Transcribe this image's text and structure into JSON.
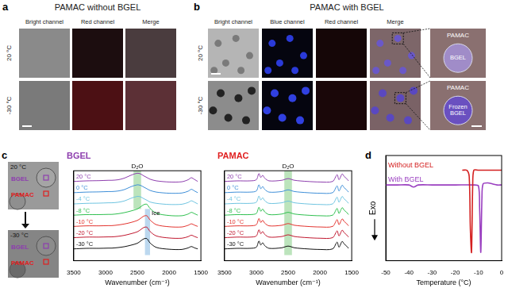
{
  "panel_labels": [
    "a",
    "b",
    "c",
    "d"
  ],
  "panels": {
    "a": {
      "title": "PAMAC without BGEL",
      "columns": [
        "Bright channel",
        "Red channel",
        "Merge"
      ],
      "rows": [
        "20 °C",
        "-30 °C"
      ]
    },
    "b": {
      "title": "PAMAC with BGEL",
      "columns": [
        "Bright channel",
        "Blue channel",
        "Red channel",
        "Merge"
      ],
      "rows": [
        "20 °C",
        "-30 °C"
      ],
      "zoom": [
        {
          "outer": "PAMAC",
          "inner": "BGEL"
        },
        {
          "outer": "PAMAC",
          "inner": "Frozen BGEL"
        }
      ]
    },
    "c": {
      "images": [
        "20 °C",
        "-30 °C"
      ],
      "markers": [
        {
          "label": "BGEL",
          "color": "#8e3fae"
        },
        {
          "label": "PAMAC",
          "color": "#e02020"
        }
      ]
    }
  },
  "chart_data": [
    {
      "type": "line",
      "title": "BGEL",
      "color": "#8e3fae",
      "xlabel": "Wavenumber (cm⁻¹)",
      "xlim": [
        3500,
        1500
      ],
      "xticks": [
        3500,
        3000,
        2500,
        2000,
        1500
      ],
      "ylim": [
        0,
        8
      ],
      "tick_labels": "x",
      "x": [
        3500,
        3300,
        3100,
        2950,
        2900,
        2800,
        2700,
        2600,
        2500,
        2450,
        2400,
        2350,
        2300,
        2200,
        2000,
        1800,
        1700,
        1650,
        1600,
        1550
      ],
      "series": [
        {
          "name": "20 °C",
          "color": "#8e3fae",
          "values": [
            7.05,
            7.1,
            7.12,
            7.15,
            7.15,
            7.2,
            7.35,
            7.6,
            7.78,
            7.72,
            7.55,
            7.4,
            7.25,
            7.1,
            7.0,
            7.02,
            7.2,
            7.38,
            7.22,
            7.05
          ]
        },
        {
          "name": "0 °C",
          "color": "#3f8fd8",
          "values": [
            6.05,
            6.1,
            6.12,
            6.15,
            6.15,
            6.2,
            6.33,
            6.58,
            6.75,
            6.7,
            6.55,
            6.4,
            6.25,
            6.1,
            6.0,
            6.02,
            6.18,
            6.35,
            6.2,
            6.05
          ]
        },
        {
          "name": "-4 °C",
          "color": "#6fc4e0",
          "values": [
            5.05,
            5.1,
            5.12,
            5.15,
            5.15,
            5.2,
            5.32,
            5.55,
            5.72,
            5.68,
            5.52,
            5.38,
            5.22,
            5.1,
            5.0,
            5.02,
            5.18,
            5.33,
            5.2,
            5.05
          ]
        },
        {
          "name": "-8 °C",
          "color": "#2fbf4f",
          "values": [
            4.05,
            4.1,
            4.1,
            4.12,
            4.12,
            4.18,
            4.28,
            4.42,
            4.6,
            4.78,
            4.98,
            5.02,
            4.65,
            4.22,
            4.02,
            4.0,
            4.15,
            4.3,
            4.18,
            4.05
          ]
        },
        {
          "name": "-10 °C",
          "color": "#e3342f",
          "values": [
            3.05,
            3.1,
            3.1,
            3.12,
            3.12,
            3.18,
            3.27,
            3.4,
            3.58,
            3.76,
            3.96,
            4.0,
            3.62,
            3.2,
            3.02,
            3.0,
            3.15,
            3.28,
            3.16,
            3.05
          ]
        },
        {
          "name": "-20 °C",
          "color": "#c0182f",
          "values": [
            2.05,
            2.1,
            2.1,
            2.12,
            2.12,
            2.17,
            2.26,
            2.4,
            2.57,
            2.75,
            2.95,
            2.98,
            2.6,
            2.2,
            2.02,
            2.0,
            2.14,
            2.27,
            2.15,
            2.05
          ]
        },
        {
          "name": "-30 °C",
          "color": "#111111",
          "values": [
            1.05,
            1.1,
            1.1,
            1.12,
            1.12,
            1.17,
            1.25,
            1.38,
            1.55,
            1.74,
            1.94,
            1.97,
            1.58,
            1.18,
            1.02,
            1.0,
            1.14,
            1.26,
            1.14,
            1.05
          ]
        }
      ],
      "annotations": [
        {
          "label": "D₂O",
          "x": [
            2560,
            2440
          ],
          "y": [
            4.6,
            8
          ],
          "color": "#9fd9a0"
        },
        {
          "label": "Ice",
          "x": [
            2380,
            2300
          ],
          "y": [
            0.5,
            4.6
          ],
          "color": "#9fc8e8"
        }
      ]
    },
    {
      "type": "line",
      "title": "PAMAC",
      "color": "#e02020",
      "xlabel": "Wavenumber (cm⁻¹)",
      "xlim": [
        3500,
        1500
      ],
      "xticks": [
        3500,
        3000,
        2500,
        2000,
        1500
      ],
      "ylim": [
        0,
        8
      ],
      "tick_labels": "x",
      "x": [
        3500,
        3300,
        3100,
        3000,
        2960,
        2930,
        2900,
        2870,
        2800,
        2600,
        2500,
        2400,
        2200,
        2000,
        1800,
        1730,
        1700,
        1650,
        1620,
        1580,
        1550
      ],
      "series": [
        {
          "name": "20 °C",
          "color": "#8e3fae",
          "values": [
            7.05,
            7.1,
            7.1,
            7.2,
            7.75,
            7.4,
            7.6,
            7.35,
            7.1,
            7.15,
            7.3,
            7.15,
            7.05,
            7.0,
            7.05,
            7.65,
            7.2,
            7.72,
            7.5,
            7.3,
            7.1
          ]
        },
        {
          "name": "0 °C",
          "color": "#3f8fd8",
          "values": [
            6.05,
            6.1,
            6.1,
            6.2,
            6.75,
            6.4,
            6.6,
            6.35,
            6.1,
            6.15,
            6.3,
            6.15,
            6.05,
            6.0,
            6.05,
            6.65,
            6.2,
            6.72,
            6.5,
            6.3,
            6.1
          ]
        },
        {
          "name": "-4 °C",
          "color": "#6fc4e0",
          "values": [
            5.05,
            5.1,
            5.1,
            5.2,
            5.75,
            5.4,
            5.6,
            5.35,
            5.1,
            5.15,
            5.3,
            5.15,
            5.05,
            5.0,
            5.05,
            5.65,
            5.2,
            5.72,
            5.5,
            5.3,
            5.1
          ]
        },
        {
          "name": "-8 °C",
          "color": "#2fbf4f",
          "values": [
            4.05,
            4.1,
            4.1,
            4.2,
            4.75,
            4.4,
            4.6,
            4.35,
            4.1,
            4.15,
            4.3,
            4.15,
            4.05,
            4.0,
            4.05,
            4.65,
            4.2,
            4.72,
            4.5,
            4.3,
            4.1
          ]
        },
        {
          "name": "-10 °C",
          "color": "#e3342f",
          "values": [
            3.05,
            3.1,
            3.1,
            3.2,
            3.75,
            3.4,
            3.6,
            3.35,
            3.1,
            3.15,
            3.3,
            3.15,
            3.05,
            3.0,
            3.05,
            3.65,
            3.2,
            3.72,
            3.5,
            3.3,
            3.1
          ]
        },
        {
          "name": "-20 °C",
          "color": "#c0182f",
          "values": [
            2.05,
            2.1,
            2.1,
            2.2,
            2.75,
            2.4,
            2.6,
            2.35,
            2.1,
            2.15,
            2.3,
            2.15,
            2.05,
            2.0,
            2.05,
            2.65,
            2.2,
            2.72,
            2.5,
            2.3,
            2.1
          ]
        },
        {
          "name": "-30 °C",
          "color": "#111111",
          "values": [
            1.05,
            1.1,
            1.1,
            1.2,
            1.75,
            1.4,
            1.6,
            1.35,
            1.1,
            1.15,
            1.3,
            1.15,
            1.05,
            1.0,
            1.05,
            1.65,
            1.2,
            1.72,
            1.5,
            1.3,
            1.1
          ]
        }
      ],
      "annotations": [
        {
          "label": "D₂O",
          "x": [
            2560,
            2440
          ],
          "y": [
            0.5,
            8
          ],
          "color": "#9fd9a0"
        }
      ]
    },
    {
      "type": "line",
      "xlabel": "Temperature (°C)",
      "ylabel": "Exo",
      "xlim": [
        -50,
        0
      ],
      "xticks": [
        -50,
        -40,
        -30,
        -20,
        -10,
        0
      ],
      "ylim": [
        0,
        1
      ],
      "tick_labels": "x",
      "series": [
        {
          "name": "Without BGEL",
          "color": "#d42020",
          "x": [
            -17,
            -15,
            -14,
            -13.5,
            -13,
            -12.5,
            -12,
            -10,
            -5,
            0
          ],
          "values": [
            0.86,
            0.86,
            0.8,
            0.3,
            0.08,
            0.7,
            0.86,
            0.86,
            0.86,
            0.86
          ]
        },
        {
          "name": "With BGEL",
          "color": "#9a3fc0",
          "x": [
            -50,
            -45,
            -40,
            -38,
            -36,
            -30,
            -20,
            -12,
            -10,
            -9.5,
            -9,
            -8.5,
            -8,
            -6,
            -4,
            -2,
            0
          ],
          "values": [
            0.72,
            0.72,
            0.72,
            0.7,
            0.72,
            0.72,
            0.72,
            0.72,
            0.71,
            0.5,
            0.08,
            0.6,
            0.73,
            0.74,
            0.73,
            0.72,
            0.72
          ]
        }
      ]
    }
  ]
}
